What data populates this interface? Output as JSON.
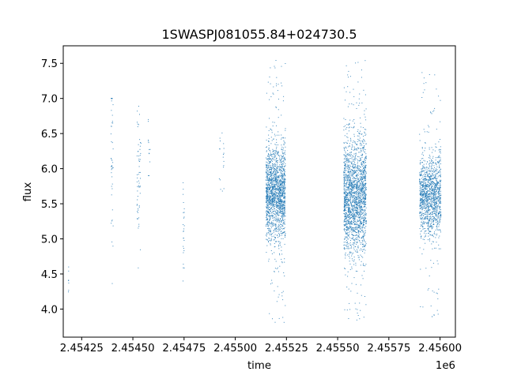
{
  "chart_data": {
    "type": "scatter",
    "title": "1SWASPJ081055.84+024730.5",
    "xlabel": "time",
    "ylabel": "flux",
    "x_offset_label": "1e6",
    "xlim": [
      2454160,
      2456075
    ],
    "ylim": [
      3.6,
      7.75
    ],
    "x_ticks": [
      2454250,
      2454500,
      2454750,
      2455000,
      2455250,
      2455500,
      2455750,
      2456000
    ],
    "x_tick_labels": [
      "2.45425",
      "2.45450",
      "2.45475",
      "2.45500",
      "2.45525",
      "2.45550",
      "2.45575",
      "2.45600"
    ],
    "y_ticks": [
      4.0,
      4.5,
      5.0,
      5.5,
      6.0,
      6.5,
      7.0,
      7.5
    ],
    "y_tick_labels": [
      "4.0",
      "4.5",
      "5.0",
      "5.5",
      "6.0",
      "6.5",
      "7.0",
      "7.5"
    ],
    "grid": false,
    "marker_color": "#1f77b4",
    "series": [
      {
        "clusters": [
          {
            "x": [
              2454185,
              2454187
            ],
            "n": 8,
            "y_center": 4.35,
            "y_spread": 0.2,
            "y_min": 3.95,
            "y_max": 4.6
          },
          {
            "x": [
              2454392,
              2454404
            ],
            "n": 45,
            "y_center": 6.2,
            "y_spread": 0.7,
            "y_min": 3.8,
            "y_max": 7.0
          },
          {
            "x": [
              2454520,
              2454540
            ],
            "n": 60,
            "y_center": 5.8,
            "y_spread": 0.55,
            "y_min": 4.3,
            "y_max": 7.1
          },
          {
            "x": [
              2454575,
              2454585
            ],
            "n": 12,
            "y_center": 6.3,
            "y_spread": 0.3,
            "y_min": 5.9,
            "y_max": 6.7
          },
          {
            "x": [
              2454745,
              2454752
            ],
            "n": 25,
            "y_center": 5.2,
            "y_spread": 0.5,
            "y_min": 4.4,
            "y_max": 5.8
          },
          {
            "x": [
              2454920,
              2454945
            ],
            "n": 18,
            "y_center": 6.15,
            "y_spread": 0.35,
            "y_min": 5.3,
            "y_max": 6.55
          },
          {
            "x": [
              2455150,
              2455245
            ],
            "n": 1700,
            "y_center": 5.65,
            "y_spread": 0.33,
            "y_min": 3.8,
            "y_max": 7.55
          },
          {
            "x": [
              2455530,
              2455640
            ],
            "n": 2000,
            "y_center": 5.6,
            "y_spread": 0.4,
            "y_min": 3.8,
            "y_max": 7.55
          },
          {
            "x": [
              2455900,
              2456005
            ],
            "n": 1300,
            "y_center": 5.6,
            "y_spread": 0.28,
            "y_min": 3.85,
            "y_max": 7.45
          }
        ]
      }
    ]
  }
}
